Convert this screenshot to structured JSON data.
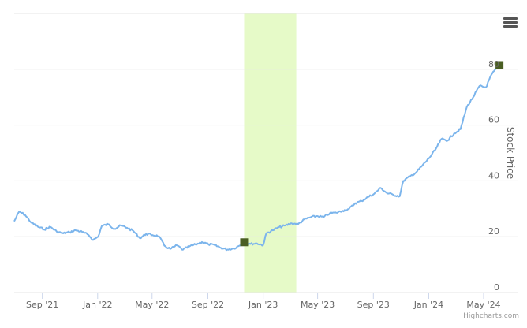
{
  "menu": {
    "icon": "hamburger-menu-icon"
  },
  "credits": "Highcharts.com",
  "chart_data": {
    "type": "line",
    "title": "",
    "xlabel": "",
    "ylabel": "Stock Price",
    "x_tick_labels": [
      "Sep '21",
      "Jan '22",
      "May '22",
      "Sep '22",
      "Jan '23",
      "May '23",
      "Sep '23",
      "Jan '24",
      "May '24"
    ],
    "x_ticks": [
      "2021-09-01",
      "2022-01-01",
      "2022-05-01",
      "2022-09-01",
      "2023-01-01",
      "2023-05-01",
      "2023-09-01",
      "2024-01-01",
      "2024-05-01"
    ],
    "y_tick_labels": [
      "0",
      "20",
      "40",
      "60",
      "80"
    ],
    "ylim": [
      0,
      100
    ],
    "xlim": [
      "2021-07-01",
      "2024-06-10"
    ],
    "grid": true,
    "y_axis_side": "right",
    "line_color": "#7cb5ec",
    "band_color": "#e6fac8",
    "marker_color": "#4a5e23",
    "plot_band": {
      "from": "2022-11-20",
      "to": "2023-03-15"
    },
    "markers": [
      {
        "x": "2022-11-20",
        "y": 18.0
      },
      {
        "x": "2024-06-05",
        "y": 81.5
      }
    ],
    "series": [
      {
        "points": [
          [
            "2021-07-01",
            25.5
          ],
          [
            "2021-07-12",
            29.0
          ],
          [
            "2021-07-25",
            27.8
          ],
          [
            "2021-08-08",
            25.0
          ],
          [
            "2021-08-22",
            23.6
          ],
          [
            "2021-09-05",
            22.6
          ],
          [
            "2021-09-19",
            23.5
          ],
          [
            "2021-10-03",
            21.8
          ],
          [
            "2021-10-17",
            21.2
          ],
          [
            "2021-10-31",
            21.6
          ],
          [
            "2021-11-14",
            22.3
          ],
          [
            "2021-11-28",
            21.7
          ],
          [
            "2021-12-12",
            20.6
          ],
          [
            "2021-12-22",
            18.8
          ],
          [
            "2022-01-02",
            20.0
          ],
          [
            "2022-01-10",
            23.8
          ],
          [
            "2022-01-24",
            24.5
          ],
          [
            "2022-02-07",
            22.8
          ],
          [
            "2022-02-21",
            24.0
          ],
          [
            "2022-03-07",
            23.2
          ],
          [
            "2022-03-21",
            22.0
          ],
          [
            "2022-04-04",
            19.5
          ],
          [
            "2022-04-18",
            21.0
          ],
          [
            "2022-05-02",
            20.6
          ],
          [
            "2022-05-16",
            20.2
          ],
          [
            "2022-05-28",
            16.8
          ],
          [
            "2022-06-10",
            15.6
          ],
          [
            "2022-06-25",
            16.9
          ],
          [
            "2022-07-08",
            15.3
          ],
          [
            "2022-07-22",
            16.5
          ],
          [
            "2022-08-05",
            17.2
          ],
          [
            "2022-08-19",
            18.1
          ],
          [
            "2022-09-02",
            17.3
          ],
          [
            "2022-09-16",
            17.0
          ],
          [
            "2022-09-30",
            16.0
          ],
          [
            "2022-10-14",
            15.4
          ],
          [
            "2022-10-28",
            15.8
          ],
          [
            "2022-11-10",
            16.8
          ],
          [
            "2022-11-20",
            18.0
          ],
          [
            "2022-12-04",
            17.4
          ],
          [
            "2022-12-18",
            17.6
          ],
          [
            "2023-01-01",
            17.0
          ],
          [
            "2023-01-08",
            21.2
          ],
          [
            "2023-01-22",
            22.3
          ],
          [
            "2023-02-05",
            23.4
          ],
          [
            "2023-02-19",
            24.0
          ],
          [
            "2023-03-05",
            24.8
          ],
          [
            "2023-03-19",
            24.5
          ],
          [
            "2023-04-02",
            26.2
          ],
          [
            "2023-04-16",
            27.0
          ],
          [
            "2023-04-30",
            27.4
          ],
          [
            "2023-05-14",
            27.0
          ],
          [
            "2023-05-28",
            28.4
          ],
          [
            "2023-06-11",
            28.6
          ],
          [
            "2023-06-25",
            29.3
          ],
          [
            "2023-07-09",
            29.9
          ],
          [
            "2023-07-23",
            32.0
          ],
          [
            "2023-08-06",
            32.8
          ],
          [
            "2023-08-20",
            34.2
          ],
          [
            "2023-09-03",
            35.4
          ],
          [
            "2023-09-17",
            37.5
          ],
          [
            "2023-10-01",
            35.6
          ],
          [
            "2023-10-15",
            35.0
          ],
          [
            "2023-10-29",
            34.5
          ],
          [
            "2023-11-06",
            40.0
          ],
          [
            "2023-11-20",
            41.5
          ],
          [
            "2023-12-04",
            43.0
          ],
          [
            "2023-12-18",
            45.5
          ],
          [
            "2024-01-01",
            48.0
          ],
          [
            "2024-01-15",
            51.0
          ],
          [
            "2024-01-29",
            55.0
          ],
          [
            "2024-02-12",
            54.5
          ],
          [
            "2024-02-26",
            57.0
          ],
          [
            "2024-03-11",
            58.5
          ],
          [
            "2024-03-25",
            66.5
          ],
          [
            "2024-04-08",
            70.0
          ],
          [
            "2024-04-22",
            74.0
          ],
          [
            "2024-05-06",
            73.5
          ],
          [
            "2024-05-20",
            78.5
          ],
          [
            "2024-05-31",
            80.5
          ],
          [
            "2024-06-05",
            81.5
          ]
        ]
      }
    ]
  }
}
